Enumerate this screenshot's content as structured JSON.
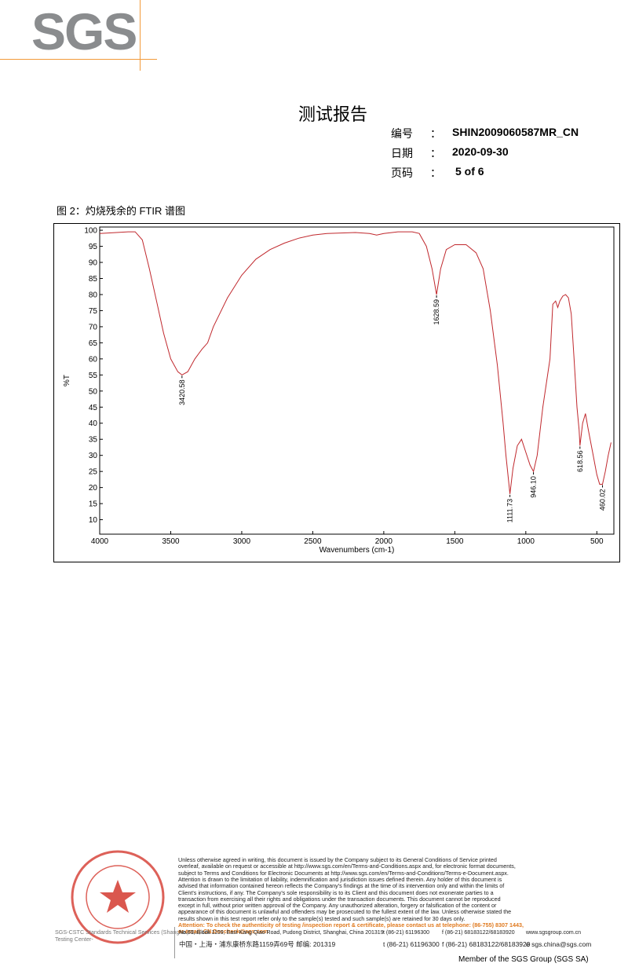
{
  "header": {
    "logo": "SGS",
    "title": "测试报告",
    "fields": [
      {
        "label": "编号",
        "sep": "：",
        "value": "SHIN2009060587MR_CN"
      },
      {
        "label": "日期",
        "sep": "：",
        "value": "2020-09-30"
      },
      {
        "label": "页码",
        "sep": "：",
        "value": "5 of 6"
      }
    ]
  },
  "caption": "图 2：灼烧残余的 FTIR 谱图",
  "chart_data": {
    "type": "line",
    "x_label": "Wavenumbers (cm-1)",
    "y_label": "%T",
    "color": "#c0282d",
    "xlim": [
      4000,
      380
    ],
    "ylim": [
      5.5,
      101
    ],
    "xticks": [
      4000,
      3500,
      3000,
      2500,
      2000,
      1500,
      1000,
      500
    ],
    "yticks": [
      10,
      15,
      20,
      25,
      30,
      35,
      40,
      45,
      50,
      55,
      60,
      65,
      70,
      75,
      80,
      85,
      90,
      95,
      100
    ],
    "x": [
      4000,
      3800,
      3750,
      3700,
      3650,
      3600,
      3550,
      3500,
      3450,
      3420.58,
      3380,
      3330,
      3280,
      3240,
      3200,
      3100,
      3000,
      2900,
      2800,
      2700,
      2600,
      2500,
      2400,
      2200,
      2100,
      2050,
      2000,
      1900,
      1800,
      1750,
      1700,
      1660,
      1628.59,
      1600,
      1560,
      1500,
      1420,
      1350,
      1300,
      1250,
      1200,
      1160,
      1140,
      1111.73,
      1090,
      1060,
      1030,
      1000,
      970,
      946.1,
      920,
      880,
      830,
      810,
      790,
      775,
      760,
      740,
      720,
      700,
      680,
      660,
      640,
      625,
      618.56,
      600,
      580,
      560,
      530,
      500,
      480,
      460.02,
      440,
      420,
      400
    ],
    "values": [
      99,
      99.5,
      99.5,
      97,
      88,
      78,
      68,
      60,
      56,
      55,
      56,
      60,
      63,
      65,
      70,
      79,
      86,
      91,
      94,
      96,
      97.5,
      98.5,
      99,
      99.3,
      99,
      98.5,
      99,
      99.5,
      99.5,
      99,
      95,
      88,
      80,
      88,
      94,
      95.5,
      95.5,
      93,
      88,
      75,
      58,
      40,
      30,
      18,
      26,
      33,
      35,
      31,
      27,
      25,
      30,
      45,
      60,
      77,
      78,
      76,
      78,
      79.5,
      80,
      79,
      74,
      60,
      45,
      38,
      33,
      40,
      43,
      38,
      31,
      24,
      21,
      21,
      25,
      30,
      34
    ],
    "annotations": [
      {
        "x": 3420.58,
        "y": 55,
        "label": "3420.58"
      },
      {
        "x": 1628.59,
        "y": 80,
        "label": "1628.59"
      },
      {
        "x": 1111.73,
        "y": 18,
        "label": "1111.73"
      },
      {
        "x": 946.1,
        "y": 25,
        "label": "946.10"
      },
      {
        "x": 618.56,
        "y": 33,
        "label": "618.56"
      },
      {
        "x": 460.02,
        "y": 21,
        "label": "460.02"
      }
    ]
  },
  "footer": {
    "lines": [
      "Unless otherwise agreed in writing, this document is issued by the Company subject to its General Conditions of Service printed",
      "overleaf, available on request or accessible at http://www.sgs.com/en/Terms-and-Conditions.aspx and, for electronic format documents,",
      "subject to Terms and Conditions for Electronic Documents at http://www.sgs.com/en/Terms-and-Conditions/Terms-e-Document.aspx.",
      "Attention is drawn to the limitation of liability, indemnification and jurisdiction issues defined therein. Any holder of this document is",
      "advised that information contained hereon reflects the Company's findings at the time of its intervention only and within the limits of",
      "Client's instructions, if any. The Company's sole responsibility is to its Client and this document does not exonerate parties to a",
      "transaction from exercising all their rights and obligations under the transaction documents. This document cannot be reproduced",
      "except in full, without prior written approval of the Company. Any unauthorized alteration, forgery or falsification of the content or",
      "appearance of this document is unlawful and offenders may be prosecuted to the fullest extent of the law. Unless otherwise stated the",
      "results shown in this test report refer only to the sample(s) tested and such sample(s) are retained for 30 days only."
    ],
    "attention": "Attention: To check the authenticity of testing /inspection report & certificate, please contact us at telephone: (86-755) 8307 1443,",
    "email": "or email: CN.Doccheck@sgs.com",
    "address_en": [
      "No.69, Block 1159, East Kang Qiao Road, Pudong District, Shanghai, China  201319",
      "t (86-21) 61196300",
      "f (86-21) 68183122/68183920",
      "www.sgsgroup.com.cn"
    ],
    "address_cn": [
      "中国・上海・浦东康桥东路1159弄69号    邮编: 201319",
      "t (86-21) 61196300",
      "f (86-21) 68183122/68183920",
      "e  sgs.china@sgs.com"
    ],
    "stamp": [
      "SGS-CSTC Standards Technical Services (Shanghai) Co., Ltd.",
      "Testing Center-"
    ],
    "member": "Member of the SGS Group (SGS SA)"
  }
}
